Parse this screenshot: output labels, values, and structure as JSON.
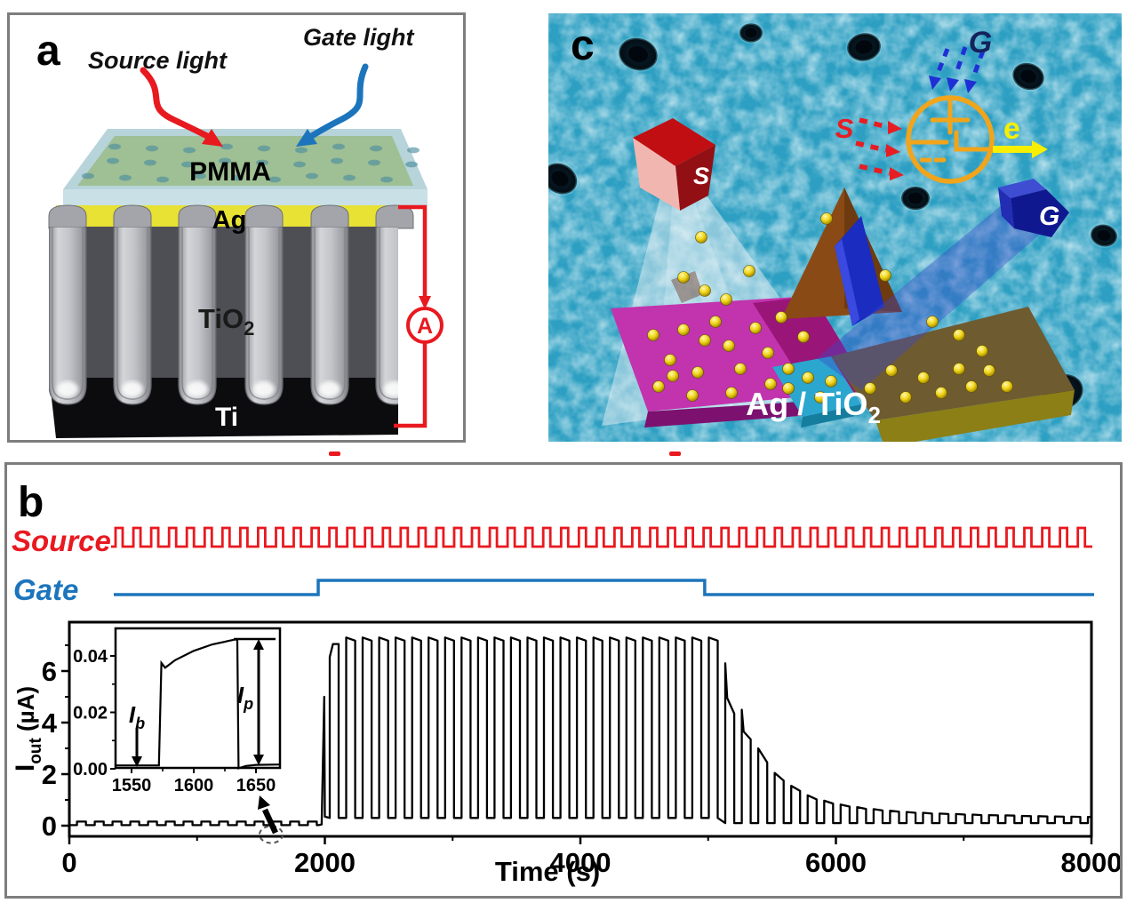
{
  "panels": {
    "a": {
      "label": "a",
      "source_light": "Source light",
      "gate_light": "Gate light",
      "pmma": "PMMA",
      "ag": "Ag",
      "tio2": {
        "main": "TiO",
        "sub": "2"
      },
      "ti": "Ti",
      "ammeter": "A"
    },
    "b": {
      "label": "b",
      "source_label": "Source",
      "gate_label": "Gate"
    },
    "c": {
      "label": "c",
      "source_prism": "S",
      "gate_prism": "G",
      "source_rays": "S",
      "gate_rays": "G",
      "electron": "e",
      "surface": {
        "main": "Ag / TiO",
        "sub": "2"
      }
    }
  },
  "colors": {
    "source_red": "#e8191f",
    "gate_blue": "#1c75bc",
    "panel_border": "#7d7d7d",
    "curve_black": "#000000",
    "symbol_orange": "#f2a41a",
    "electron_yellow": "#f8ef00",
    "sem_teal": "#2d9fc2"
  },
  "chart_data": {
    "type": "line",
    "title": "",
    "xlabel": "Time (s)",
    "ylabel": {
      "main": "I",
      "sub": "out",
      "unit": "(µA)"
    },
    "xlim": [
      0,
      8000
    ],
    "ylim": [
      -0.4,
      7.9
    ],
    "grid": false,
    "x_ticks": [
      0,
      2000,
      4000,
      6000,
      8000
    ],
    "x_minor_ticks": [
      1000,
      3000,
      5000,
      7000
    ],
    "y_ticks": [
      0,
      2,
      4,
      6
    ],
    "y_minor_ticks": [
      1,
      3,
      5,
      7
    ],
    "signals": {
      "source": {
        "label": "Source",
        "waveform": "square",
        "cycles": 55
      },
      "gate": {
        "label": "Gate",
        "waveform": "step",
        "on_time_s": 1948,
        "off_time_s": 4973
      }
    },
    "iout": {
      "baseline": {
        "t_start": 0,
        "t_end": 1950,
        "low_uA": 0.02,
        "high_uA": 0.16,
        "period_s": 139,
        "on_s": 70
      },
      "onset_spike": {
        "t_rise": 1975,
        "t_peak": 1995,
        "peak_uA": 5.0,
        "t_end": 2000,
        "end_uA": 0.35
      },
      "on_pulses": {
        "t0": 2038,
        "period_s": 129,
        "on_s": 70,
        "high_uA": 7.3,
        "end_high_uA": 7.18,
        "first_rise_uA": 6.55,
        "first_high_uA": 7.05,
        "low_uA": 0.3,
        "count": 24
      },
      "decay_pulses": {
        "t0": 5134,
        "period_s": 129,
        "on_s": 70,
        "low_uA": 0.1,
        "peaks": [
          [
            6.3,
            4.35
          ],
          [
            4.5,
            3.35
          ],
          [
            3.0,
            2.45
          ],
          [
            2.05,
            1.75
          ],
          [
            1.55,
            1.35
          ],
          [
            1.18,
            1.02
          ],
          [
            0.97,
            0.86
          ],
          [
            0.82,
            0.74
          ],
          [
            0.72,
            0.65
          ],
          [
            0.64,
            0.59
          ],
          [
            0.58,
            0.54
          ],
          [
            0.53,
            0.5
          ],
          [
            0.5,
            0.47
          ],
          [
            0.47,
            0.45
          ],
          [
            0.45,
            0.43
          ],
          [
            0.43,
            0.41
          ],
          [
            0.41,
            0.4
          ],
          [
            0.4,
            0.39
          ],
          [
            0.38,
            0.37
          ],
          [
            0.37,
            0.36
          ],
          [
            0.36,
            0.35
          ],
          [
            0.35,
            0.34
          ],
          [
            0.34,
            0.33
          ]
        ]
      }
    },
    "inset": {
      "xlim": [
        1537,
        1669
      ],
      "ylim": [
        0,
        0.05
      ],
      "x_ticks": [
        1550,
        1600,
        1650
      ],
      "x_minor_ticks": [
        1575,
        1625
      ],
      "y_ticks": [
        "0.00",
        "0.02",
        "0.04"
      ],
      "y_minor_ticks": [
        0.01,
        0.03
      ],
      "labels": {
        "base": {
          "main": "I",
          "sub": "b"
        },
        "peak": {
          "main": "I",
          "sub": "p"
        }
      },
      "curve": [
        [
          1537,
          0.0012
        ],
        [
          1572,
          0.0012
        ],
        [
          1574,
          0.0375
        ],
        [
          1577,
          0.0358
        ],
        [
          1585,
          0.0385
        ],
        [
          1600,
          0.0418
        ],
        [
          1615,
          0.0441
        ],
        [
          1633,
          0.0458
        ],
        [
          1635,
          0.0458
        ],
        [
          1636,
          0.0002
        ],
        [
          1642,
          0.001
        ],
        [
          1650,
          0.0014
        ],
        [
          1669,
          0.0015
        ]
      ]
    }
  }
}
